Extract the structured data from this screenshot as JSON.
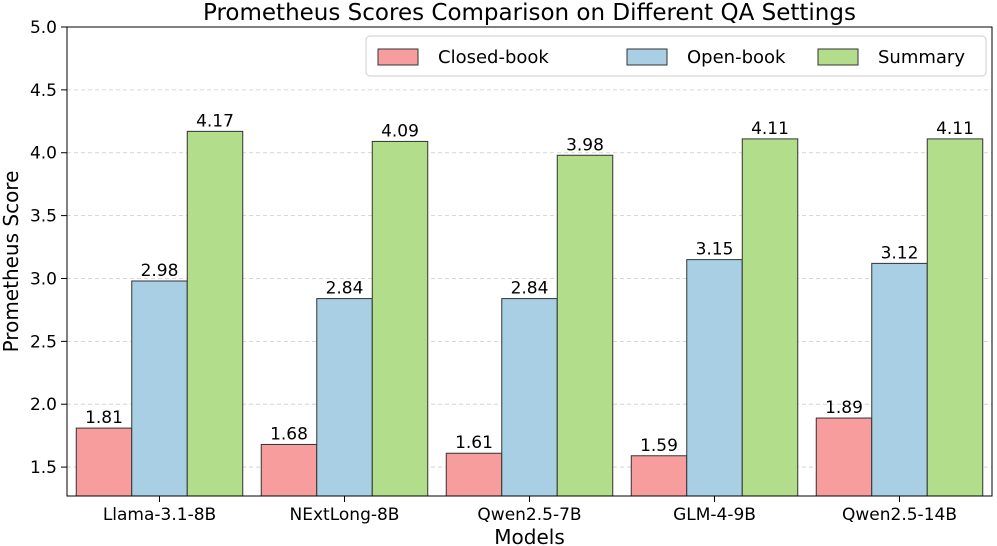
{
  "chart_data": {
    "type": "bar",
    "title": "Prometheus Scores Comparison on Different QA Settings",
    "xlabel": "Models",
    "ylabel": "Prometheus Score",
    "ylim": [
      1.27,
      5.0
    ],
    "yticks": [
      "1.5",
      "2.0",
      "2.5",
      "3.0",
      "3.5",
      "4.0",
      "4.5",
      "5.0"
    ],
    "grid": "horizontal dashed",
    "legend_position": "top-right",
    "categories": [
      "Llama-3.1-8B",
      "NExtLong-8B",
      "Qwen2.5-7B",
      "GLM-4-9B",
      "Qwen2.5-14B"
    ],
    "series": [
      {
        "name": "Closed-book",
        "color": "#f89d9d",
        "values": [
          1.81,
          1.68,
          1.61,
          1.59,
          1.89
        ],
        "labels": [
          "1.81",
          "1.68",
          "1.61",
          "1.59",
          "1.89"
        ]
      },
      {
        "name": "Open-book",
        "color": "#a8cfe3",
        "values": [
          2.98,
          2.84,
          2.84,
          3.15,
          3.12
        ],
        "labels": [
          "2.98",
          "2.84",
          "2.84",
          "3.15",
          "3.12"
        ]
      },
      {
        "name": "Summary",
        "color": "#b2dd8b",
        "values": [
          4.17,
          4.09,
          3.98,
          4.11,
          4.11
        ],
        "labels": [
          "4.17",
          "4.09",
          "3.98",
          "4.11",
          "4.11"
        ]
      }
    ]
  }
}
